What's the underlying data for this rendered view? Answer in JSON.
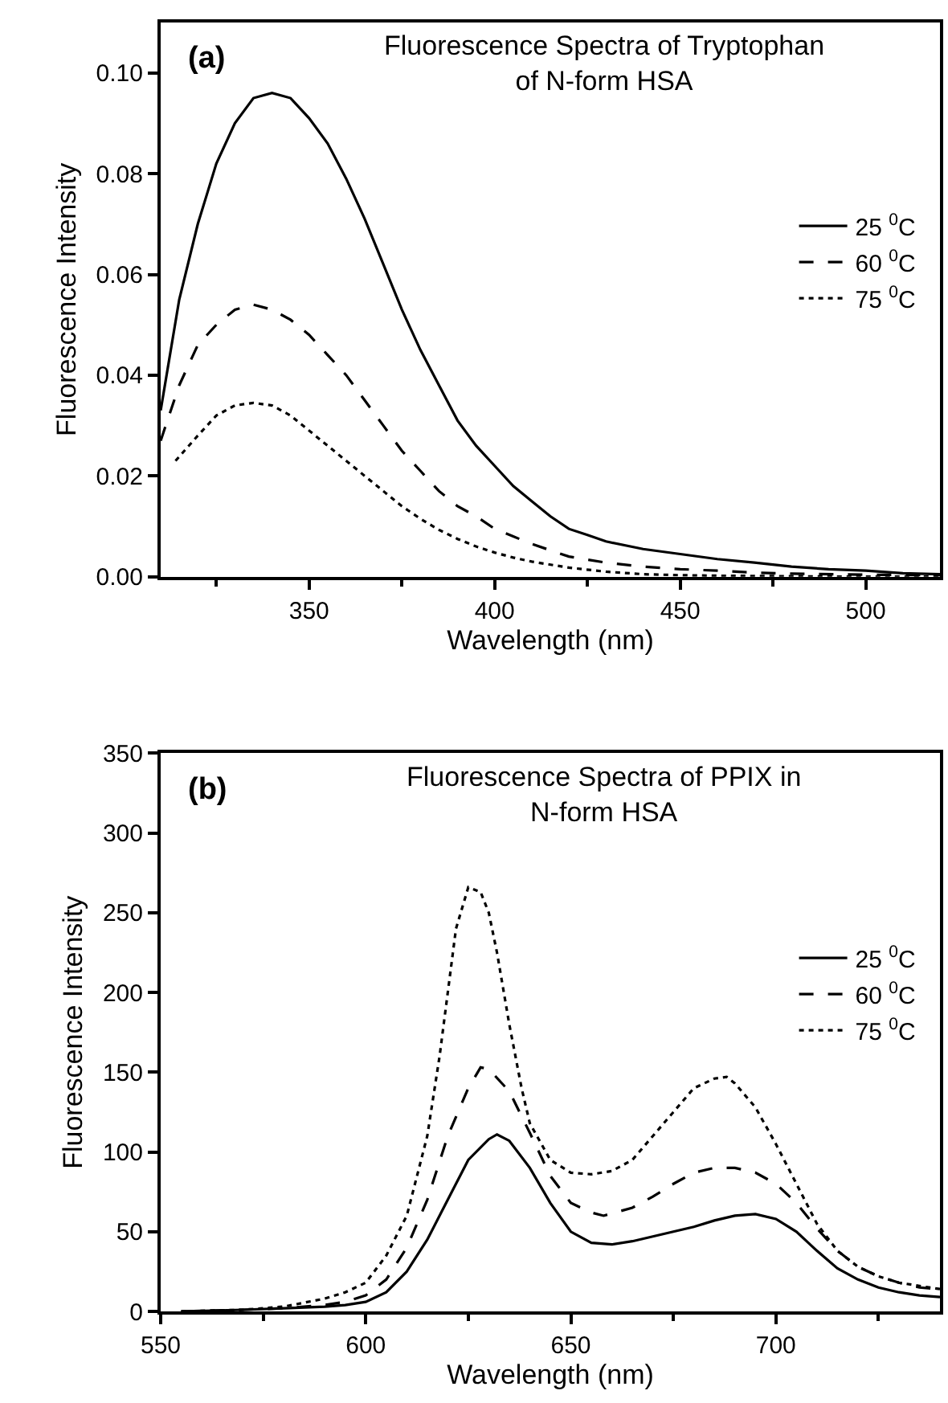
{
  "chart_data": [
    {
      "type": "line",
      "title": "Fluorescence Spectra of Tryptophan\nof N-form HSA",
      "annotations": [
        "(a)"
      ],
      "xlabel": "Wavelength (nm)",
      "ylabel": "Fluorescence Intensity",
      "xlim": [
        310,
        520
      ],
      "xticks": [
        350,
        400,
        450,
        500
      ],
      "ylim": [
        0,
        0.11
      ],
      "yticks": [
        {
          "value": 0,
          "label": "0.00"
        },
        {
          "value": 0.02,
          "label": "0.02"
        },
        {
          "value": 0.04,
          "label": "0.04"
        },
        {
          "value": 0.06,
          "label": "0.06"
        },
        {
          "value": 0.08,
          "label": "0.08"
        },
        {
          "value": 0.1,
          "label": "0.10"
        }
      ],
      "legend": "right",
      "marker": "none",
      "series": [
        {
          "name": "25 $^{0}$C",
          "color": "#000000",
          "line_style": "solid",
          "x": [
            310,
            315,
            320,
            325,
            330,
            335,
            340,
            345,
            350,
            355,
            360,
            365,
            370,
            375,
            380,
            385,
            390,
            395,
            400,
            405,
            410,
            415,
            420,
            425,
            430,
            440,
            450,
            460,
            470,
            480,
            490,
            500,
            510,
            520
          ],
          "values": [
            0.033,
            0.055,
            0.07,
            0.082,
            0.09,
            0.095,
            0.096,
            0.095,
            0.091,
            0.086,
            0.079,
            0.071,
            0.062,
            0.053,
            0.045,
            0.038,
            0.031,
            0.026,
            0.022,
            0.018,
            0.015,
            0.012,
            0.0095,
            0.0083,
            0.007,
            0.0055,
            0.0045,
            0.0035,
            0.0028,
            0.002,
            0.0015,
            0.0012,
            0.0007,
            0.0005
          ]
        },
        {
          "name": "60 $^{0}$C",
          "color": "#000000",
          "line_style": "dashed",
          "x": [
            310,
            315,
            320,
            325,
            330,
            335,
            340,
            345,
            350,
            355,
            360,
            365,
            370,
            375,
            380,
            385,
            390,
            395,
            400,
            405,
            410,
            420,
            430,
            440,
            450,
            460,
            470,
            480,
            500,
            520
          ],
          "values": [
            0.027,
            0.038,
            0.046,
            0.05,
            0.053,
            0.054,
            0.053,
            0.051,
            0.048,
            0.044,
            0.04,
            0.035,
            0.03,
            0.025,
            0.021,
            0.017,
            0.014,
            0.012,
            0.0095,
            0.008,
            0.0065,
            0.004,
            0.0028,
            0.002,
            0.0015,
            0.0012,
            0.0008,
            0.0006,
            0.0004,
            0.0003
          ]
        },
        {
          "name": "75 $^{0}$C",
          "color": "#000000",
          "line_style": "dotted",
          "x": [
            314,
            320,
            325,
            330,
            335,
            340,
            345,
            350,
            355,
            360,
            365,
            370,
            375,
            380,
            385,
            390,
            395,
            400,
            405,
            410,
            420,
            430,
            440,
            450,
            460,
            480,
            500,
            520
          ],
          "values": [
            0.023,
            0.028,
            0.032,
            0.034,
            0.0345,
            0.034,
            0.032,
            0.029,
            0.026,
            0.023,
            0.02,
            0.017,
            0.014,
            0.0115,
            0.0093,
            0.0075,
            0.006,
            0.0048,
            0.0038,
            0.003,
            0.0018,
            0.001,
            0.0005,
            0.0003,
            0.0002,
            0.0001,
            0,
            0
          ]
        }
      ]
    },
    {
      "type": "line",
      "title": "Fluorescence Spectra of PPIX in\nN-form HSA",
      "annotations": [
        "(b)"
      ],
      "xlabel": "Wavelength (nm)",
      "ylabel": "Fluorescence Intensity",
      "xlim": [
        550,
        740
      ],
      "xticks": [
        550,
        600,
        650,
        700
      ],
      "ylim": [
        0,
        350
      ],
      "yticks": [
        0,
        50,
        100,
        150,
        200,
        250,
        300,
        350
      ],
      "legend": "right",
      "marker": "none",
      "series": [
        {
          "name": "25 $^{0}$C",
          "color": "#000000",
          "line_style": "solid",
          "x": [
            555,
            570,
            580,
            590,
            595,
            600,
            605,
            610,
            615,
            620,
            625,
            630,
            632,
            635,
            640,
            645,
            650,
            655,
            660,
            665,
            670,
            675,
            680,
            685,
            690,
            695,
            700,
            705,
            710,
            715,
            720,
            725,
            730,
            735,
            740
          ],
          "values": [
            0,
            1,
            2,
            3,
            4,
            6,
            12,
            25,
            45,
            70,
            95,
            108,
            111,
            107,
            90,
            68,
            50,
            43,
            42,
            44,
            47,
            50,
            53,
            57,
            60,
            61,
            58,
            50,
            38,
            27,
            20,
            15,
            12,
            10,
            9
          ]
        },
        {
          "name": "60 $^{0}$C",
          "color": "#000000",
          "line_style": "dashed",
          "x": [
            555,
            570,
            580,
            590,
            595,
            600,
            605,
            610,
            615,
            620,
            625,
            628,
            630,
            635,
            640,
            645,
            650,
            655,
            658,
            665,
            670,
            675,
            680,
            685,
            690,
            695,
            700,
            705,
            710,
            715,
            720,
            725,
            730,
            735,
            740
          ],
          "values": [
            0,
            1,
            2,
            4,
            6,
            10,
            20,
            40,
            70,
            110,
            140,
            153,
            152,
            138,
            112,
            85,
            68,
            62,
            60,
            65,
            72,
            80,
            87,
            90,
            90,
            87,
            80,
            68,
            52,
            38,
            28,
            22,
            18,
            15,
            14
          ]
        },
        {
          "name": "75 $^{0}$C",
          "color": "#000000",
          "line_style": "dotted",
          "x": [
            555,
            570,
            580,
            590,
            595,
            600,
            605,
            610,
            615,
            618,
            620,
            622,
            625,
            628,
            630,
            632,
            635,
            638,
            640,
            645,
            650,
            655,
            660,
            665,
            670,
            675,
            680,
            685,
            688,
            690,
            695,
            700,
            705,
            710,
            715,
            720,
            725,
            730,
            735,
            740
          ],
          "values": [
            0,
            1,
            3,
            8,
            12,
            18,
            35,
            60,
            110,
            160,
            200,
            240,
            266,
            263,
            250,
            225,
            180,
            140,
            118,
            95,
            87,
            86,
            88,
            95,
            110,
            125,
            140,
            146,
            147,
            143,
            128,
            105,
            80,
            55,
            38,
            28,
            22,
            18,
            16,
            14
          ]
        }
      ]
    }
  ]
}
